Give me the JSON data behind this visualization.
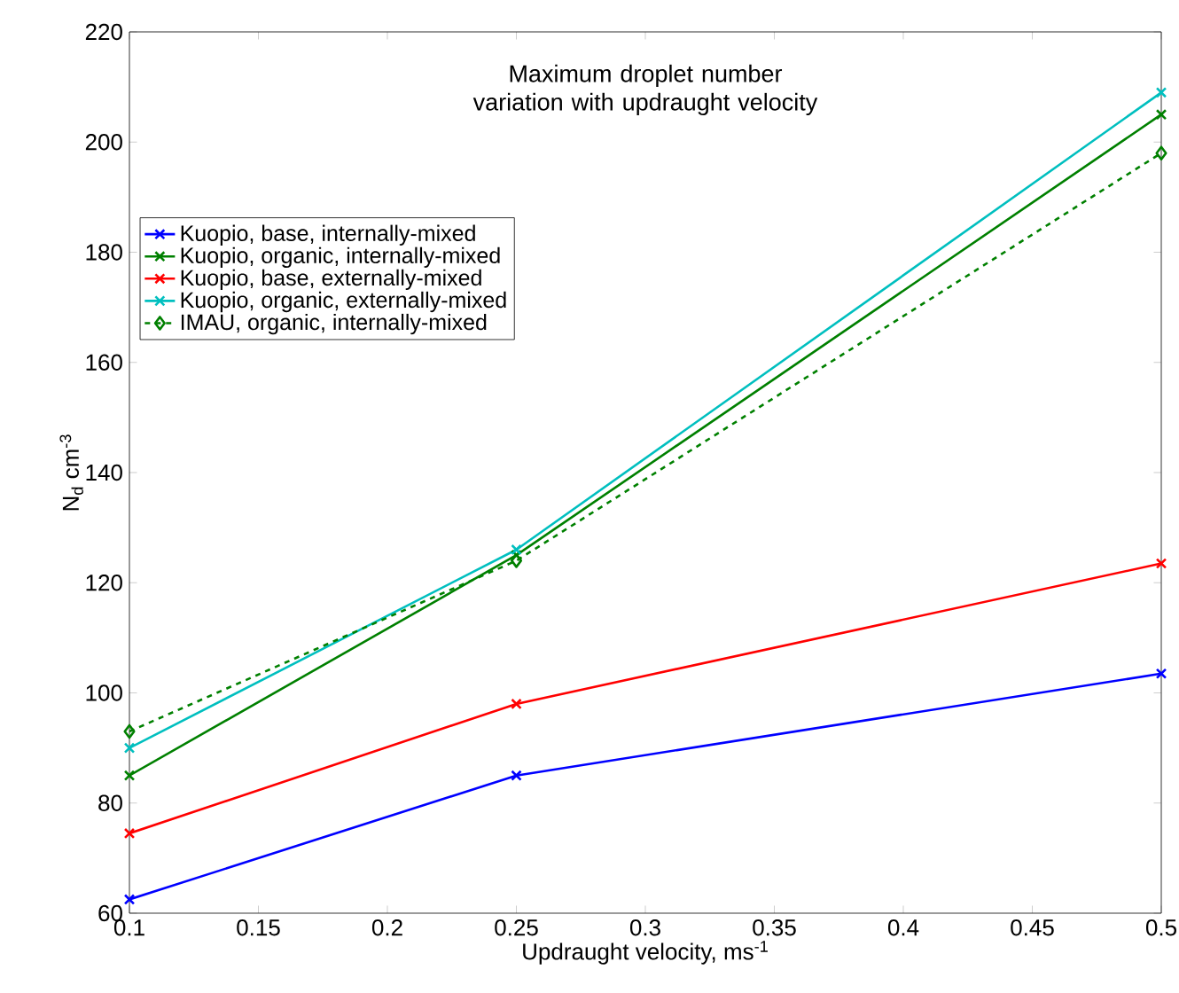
{
  "chart_data": {
    "type": "line",
    "title": "Maximum droplet number variation with updraught velocity",
    "xlabel": "Updraught velocity, ms$^{-1}$",
    "ylabel": "N$_{d}$ cm$^{-3}$",
    "x": [
      0.1,
      0.25,
      0.5
    ],
    "xlim": [
      0.1,
      0.5
    ],
    "xticks": [
      0.1,
      0.15,
      0.2,
      0.25,
      0.3,
      0.35,
      0.4,
      0.45,
      0.5
    ],
    "ylim": [
      60,
      220
    ],
    "yticks": [
      60,
      80,
      100,
      120,
      140,
      160,
      180,
      200,
      220
    ],
    "grid": false,
    "legend": "left",
    "series": [
      {
        "name": "Kuopio, base, internally-mixed",
        "color": "#0000ff",
        "marker": "cross",
        "line_style": "solid",
        "values": [
          62.5,
          85,
          103.5
        ]
      },
      {
        "name": "Kuopio, organic, internally-mixed",
        "color": "#008000",
        "marker": "cross",
        "line_style": "solid",
        "values": [
          85,
          125,
          205
        ]
      },
      {
        "name": "Kuopio, base, externally-mixed",
        "color": "#ff0000",
        "marker": "cross",
        "line_style": "solid",
        "values": [
          74.5,
          98,
          123.5
        ]
      },
      {
        "name": "Kuopio, organic, externally-mixed",
        "color": "#00bfbf",
        "marker": "cross",
        "line_style": "solid",
        "values": [
          90,
          126,
          209
        ]
      },
      {
        "name": "IMAU, organic, internally-mixed",
        "color": "#008000",
        "marker": "diamond",
        "line_style": "dashed",
        "values": [
          93,
          124,
          198
        ]
      }
    ]
  }
}
